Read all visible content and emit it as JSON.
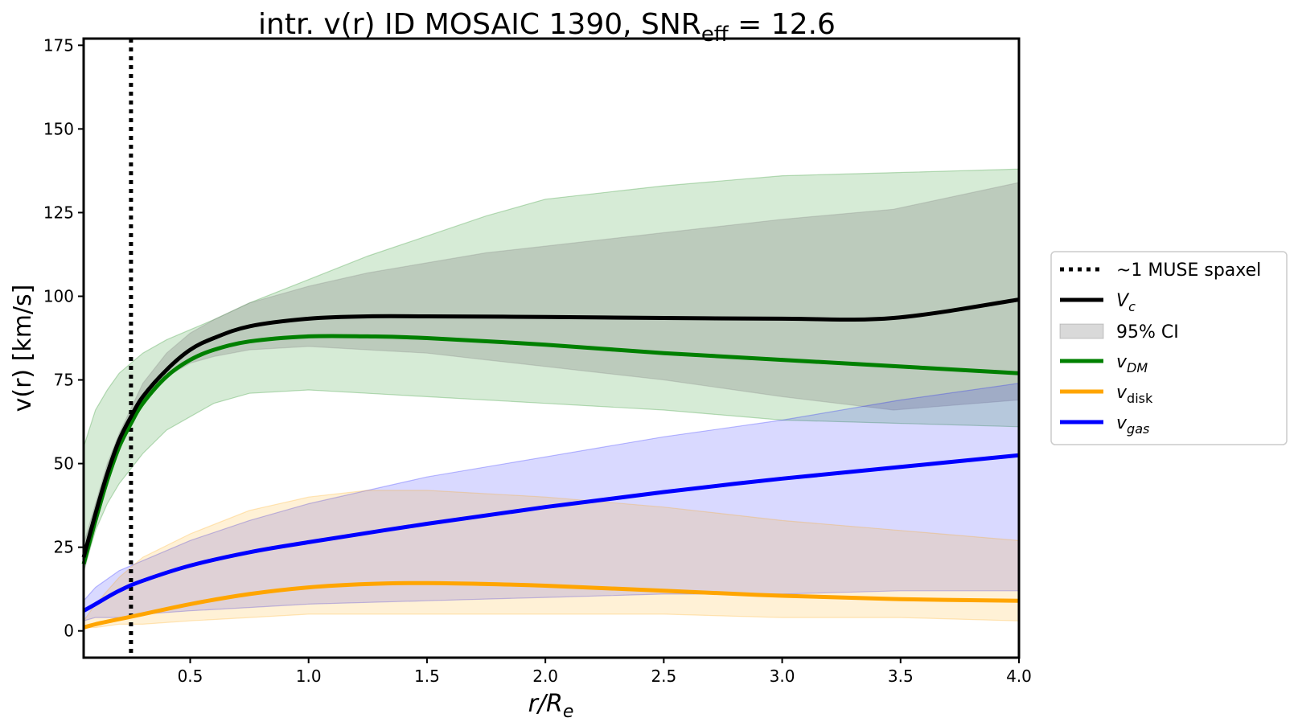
{
  "chart_data": {
    "type": "line",
    "title": "intr. v(r) ID MOSAIC 1390, SNR",
    "title_sub": "eff",
    "title_suffix": " = 12.6",
    "xlabel_main": "r/R",
    "xlabel_sub": "e",
    "ylabel": "v(r) [km/s]",
    "xlim": [
      0.05,
      4.0
    ],
    "ylim": [
      -8,
      177
    ],
    "xticks": [
      0.5,
      1.0,
      1.5,
      2.0,
      2.5,
      3.0,
      3.5,
      4.0
    ],
    "xtick_labels": [
      "0.5",
      "1.0",
      "1.5",
      "2.0",
      "2.5",
      "3.0",
      "3.5",
      "4.0"
    ],
    "yticks": [
      0,
      25,
      50,
      75,
      100,
      125,
      150,
      175
    ],
    "ytick_labels": [
      "0",
      "25",
      "50",
      "75",
      "100",
      "125",
      "150",
      "175"
    ],
    "vline": {
      "x": 0.25,
      "style": "dotted",
      "color": "#000000"
    },
    "colors": {
      "vc": "#000000",
      "dm": "#008000",
      "disk": "#FFA500",
      "gas": "#0000FF",
      "ci_legend": "#808080"
    },
    "legend": {
      "placement": "outside-right",
      "items": [
        {
          "label": "~1 MUSE spaxel",
          "style": "dotted"
        },
        {
          "label": "V",
          "sub": "c",
          "italic": true,
          "style": "line",
          "color": "#000000"
        },
        {
          "label": "95% CI",
          "style": "patch"
        },
        {
          "label": "v",
          "sub": "DM",
          "italic": true,
          "sub_italic": true,
          "style": "line",
          "color": "#008000"
        },
        {
          "label": "v",
          "sub": "disk",
          "italic": true,
          "sub_italic": false,
          "style": "line",
          "color": "#FFA500"
        },
        {
          "label": "v",
          "sub": "gas",
          "italic": true,
          "sub_italic": true,
          "style": "line",
          "color": "#0000FF"
        }
      ]
    },
    "bands": [
      {
        "name": "dm-ci-band",
        "color": "#008000",
        "opacity": 0.16,
        "x": [
          0.05,
          0.1,
          0.15,
          0.2,
          0.3,
          0.4,
          0.5,
          0.6,
          0.75,
          1.0,
          1.25,
          1.5,
          1.75,
          2.0,
          2.5,
          3.0,
          3.5,
          4.0
        ],
        "lower": [
          18,
          30,
          38,
          44,
          53,
          60,
          64,
          68,
          71,
          72,
          71,
          70,
          69,
          68,
          66,
          63,
          62,
          61
        ],
        "upper": [
          55,
          66,
          72,
          77,
          83,
          87,
          90,
          93,
          98,
          105,
          112,
          118,
          124,
          129,
          133,
          136,
          137,
          138
        ]
      },
      {
        "name": "vc-ci-band",
        "color": "#808080",
        "opacity": 0.3,
        "x": [
          0.05,
          0.1,
          0.15,
          0.2,
          0.3,
          0.4,
          0.5,
          0.6,
          0.75,
          1.0,
          1.25,
          1.5,
          1.75,
          2.0,
          2.5,
          3.0,
          3.47,
          4.0
        ],
        "lower": [
          17,
          32,
          44,
          55,
          68,
          76,
          80,
          82,
          84,
          85,
          84,
          83,
          81,
          79,
          75,
          70,
          66,
          69
        ],
        "upper": [
          26,
          38,
          50,
          59,
          74,
          83,
          89,
          93,
          98,
          103,
          107,
          110,
          113,
          115,
          119,
          123,
          126,
          134
        ]
      },
      {
        "name": "gas-ci-band",
        "color": "#0000FF",
        "opacity": 0.15,
        "x": [
          0.05,
          0.1,
          0.2,
          0.3,
          0.5,
          0.75,
          1.0,
          1.5,
          2.0,
          2.5,
          3.0,
          3.5,
          4.0
        ],
        "lower": [
          3,
          4,
          4,
          5,
          6,
          7,
          8,
          9,
          10,
          11,
          11,
          12,
          12
        ],
        "upper": [
          9,
          13,
          18,
          21,
          27,
          33,
          38,
          46,
          52,
          58,
          63,
          69,
          74
        ]
      },
      {
        "name": "disk-ci-band",
        "color": "#FFA500",
        "opacity": 0.16,
        "x": [
          0.05,
          0.1,
          0.2,
          0.3,
          0.5,
          0.75,
          1.0,
          1.25,
          1.5,
          2.0,
          2.5,
          3.0,
          3.5,
          4.0
        ],
        "lower": [
          1,
          1,
          2,
          2,
          3,
          4,
          5,
          5,
          5,
          5,
          5,
          4,
          4,
          3
        ],
        "upper": [
          3,
          8,
          16,
          22,
          29,
          36,
          40,
          42,
          42,
          40,
          37,
          33,
          30,
          27
        ]
      }
    ],
    "series": [
      {
        "name": "v_gas",
        "color": "#0000FF",
        "x": [
          0.05,
          0.1,
          0.2,
          0.3,
          0.5,
          0.75,
          1.0,
          1.5,
          2.0,
          2.5,
          3.0,
          3.5,
          4.0
        ],
        "y": [
          6,
          8,
          12,
          15,
          19.5,
          23.5,
          26.5,
          32,
          37,
          41.5,
          45.5,
          49,
          52.5
        ]
      },
      {
        "name": "v_disk",
        "color": "#FFA500",
        "x": [
          0.05,
          0.1,
          0.2,
          0.3,
          0.5,
          0.75,
          1.0,
          1.25,
          1.5,
          1.75,
          2.0,
          2.5,
          3.0,
          3.5,
          4.0
        ],
        "y": [
          1,
          2,
          3.5,
          5,
          8,
          11,
          13,
          14,
          14.3,
          14,
          13.5,
          12,
          10.5,
          9.5,
          9
        ]
      },
      {
        "name": "v_DM",
        "color": "#008000",
        "x": [
          0.05,
          0.1,
          0.15,
          0.2,
          0.25,
          0.3,
          0.4,
          0.5,
          0.6,
          0.75,
          1.0,
          1.25,
          1.5,
          2.0,
          2.5,
          3.0,
          3.5,
          4.0
        ],
        "y": [
          20,
          33,
          45,
          55,
          62,
          68,
          76,
          81,
          84,
          86.5,
          88,
          88,
          87.5,
          85.5,
          83,
          81,
          79,
          77
        ]
      },
      {
        "name": "V_c",
        "color": "#000000",
        "x": [
          0.05,
          0.1,
          0.15,
          0.2,
          0.25,
          0.3,
          0.4,
          0.5,
          0.6,
          0.75,
          1.0,
          1.25,
          1.5,
          2.0,
          2.5,
          3.0,
          3.47,
          4.0
        ],
        "y": [
          22,
          35,
          47,
          57,
          64,
          70,
          78,
          84,
          87.5,
          91,
          93.3,
          94,
          94,
          93.8,
          93.5,
          93.3,
          93.5,
          99
        ]
      }
    ]
  }
}
